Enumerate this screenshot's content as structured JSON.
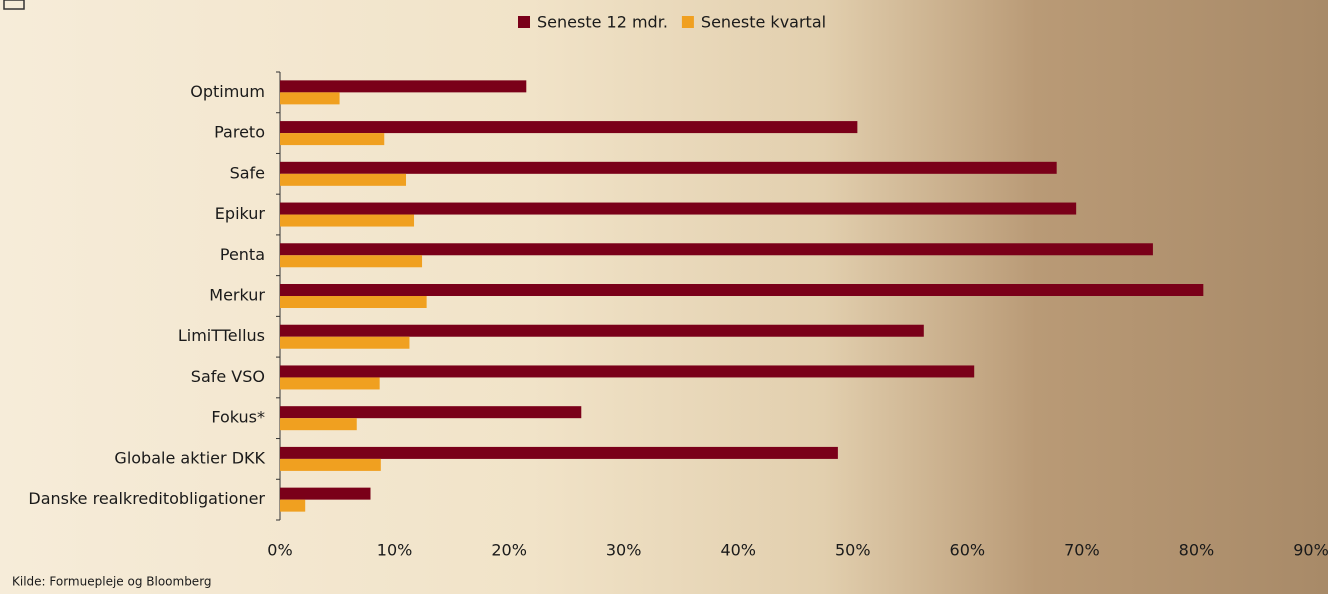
{
  "chart_data": {
    "type": "hbar",
    "categories": [
      "Optimum",
      "Pareto",
      "Safe",
      "Epikur",
      "Penta",
      "Merkur",
      "LimiTTellus",
      "Safe VSO",
      "Fokus*",
      "Globale aktier DKK",
      "Danske realkreditobligationer"
    ],
    "series": [
      {
        "name": "Seneste 12 mdr.",
        "color": "#7a0019",
        "values": [
          21.5,
          50.4,
          67.8,
          69.5,
          76.2,
          80.6,
          56.2,
          60.6,
          26.3,
          48.7,
          7.9
        ]
      },
      {
        "name": "Seneste kvartal",
        "color": "#f0a020",
        "values": [
          5.2,
          9.1,
          11.0,
          11.7,
          12.4,
          12.8,
          11.3,
          8.7,
          6.7,
          8.8,
          2.2
        ]
      }
    ],
    "xlim": [
      0,
      90
    ],
    "xticks": [
      {
        "value": 0,
        "label": "0%"
      },
      {
        "value": 10,
        "label": "10%"
      },
      {
        "value": 20,
        "label": "20%"
      },
      {
        "value": 30,
        "label": "30%"
      },
      {
        "value": 40,
        "label": "40%"
      },
      {
        "value": 50,
        "label": "50%"
      },
      {
        "value": 60,
        "label": "60%"
      },
      {
        "value": 70,
        "label": "70%"
      },
      {
        "value": 80,
        "label": "80%"
      },
      {
        "value": 90,
        "label": "90%"
      }
    ],
    "source": "Kilde: Formuepleje og Bloomberg"
  }
}
